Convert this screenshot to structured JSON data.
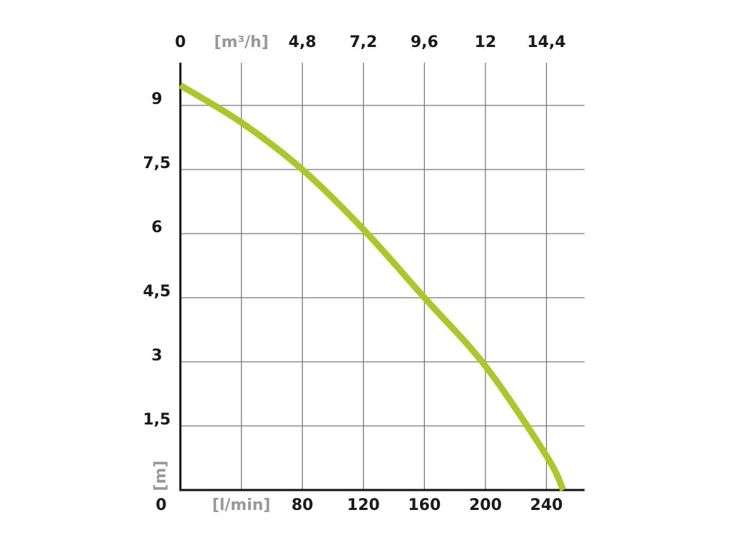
{
  "chart_data": {
    "type": "line",
    "x_label": "[l/min]",
    "x2_label": "[m³/h]",
    "y_label": "[m]",
    "x": [
      0,
      40,
      80,
      120,
      160,
      200,
      240,
      251
    ],
    "series": [
      {
        "color": "#a9c92b",
        "values": [
          9.47,
          8.6,
          7.5,
          6.1,
          4.5,
          2.9,
          0.8,
          0
        ]
      }
    ],
    "xlim": [
      0,
      265
    ],
    "xticks": [
      0,
      {
        "value": 40,
        "label": null
      },
      80,
      120,
      160,
      200,
      240
    ],
    "x2lim": [
      0,
      15.9
    ],
    "x2ticks": [
      0,
      {
        "value": 2.4,
        "label": null
      },
      {
        "value": 4.8,
        "label": "4,8"
      },
      {
        "value": 7.2,
        "label": "7,2"
      },
      {
        "value": 9.6,
        "label": "9,6"
      },
      12,
      {
        "value": 14.4,
        "label": "14,4"
      }
    ],
    "ylim": [
      0,
      10
    ],
    "yticks": [
      0,
      {
        "value": 1.5,
        "label": "1,5"
      },
      3,
      {
        "value": 4.5,
        "label": "4,5"
      },
      6,
      {
        "value": 7.5,
        "label": "7,5"
      },
      9
    ],
    "grid": true
  }
}
